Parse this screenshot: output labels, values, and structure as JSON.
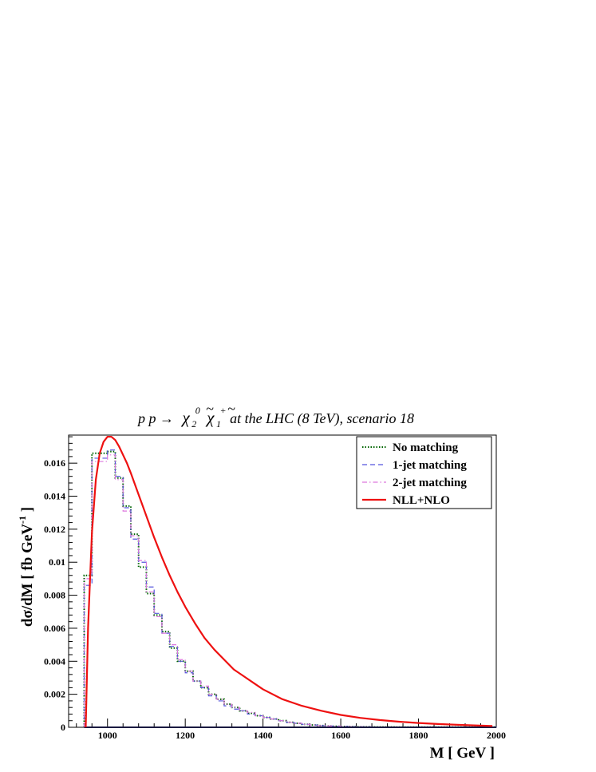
{
  "chart_data": {
    "type": "line",
    "title_parts": {
      "prefix": "p p  →",
      "p1": "χ",
      "p1_tilde": "~",
      "p1_sup": "0",
      "p1_sub": "2",
      "p2": "χ",
      "p2_tilde": "~",
      "p2_sup": "+",
      "p2_sub": "1",
      "suffix": " at the LHC (8 TeV), scenario 18"
    },
    "xlabel": "M  [ GeV ]",
    "ylabel": "dσ/dM  [ fb GeV",
    "ylabel_sup": "-1",
    "ylabel_end": " ]",
    "xlim": [
      900,
      2000
    ],
    "ylim": [
      0,
      0.0177
    ],
    "xticks": [
      "1000",
      "1200",
      "1400",
      "1600",
      "1800",
      "2000"
    ],
    "yticks": [
      "0",
      "0.002",
      "0.004",
      "0.006",
      "0.008",
      "0.01",
      "0.012",
      "0.014",
      "0.016"
    ],
    "bin_edges": [
      940,
      960,
      980,
      1000,
      1020,
      1040,
      1060,
      1080,
      1100,
      1120,
      1140,
      1160,
      1180,
      1200,
      1220,
      1240,
      1260,
      1280,
      1300,
      1320,
      1340,
      1360,
      1380,
      1400,
      1420,
      1440,
      1460,
      1480,
      1500,
      1520,
      1540,
      1560,
      1580,
      1600,
      1620,
      1640,
      1660,
      1680,
      1700,
      1720,
      1740,
      1760,
      1780,
      1800,
      1820,
      1840,
      1860,
      1880,
      1900,
      1920,
      1940,
      1960,
      1980,
      2000
    ],
    "series": [
      {
        "name": "No matching",
        "style": "hist",
        "color": "#006400",
        "dash": "1.5,2",
        "values": [
          0.0092,
          0.0166,
          0.0166,
          0.0167,
          0.0151,
          0.0134,
          0.0117,
          0.0097,
          0.0081,
          0.0068,
          0.0058,
          0.0048,
          0.004,
          0.0034,
          0.0028,
          0.0024,
          0.002,
          0.0017,
          0.0014,
          0.0012,
          0.001,
          0.00085,
          0.0007,
          0.0006,
          0.0005,
          0.0004,
          0.0003,
          0.00024,
          0.00018,
          0.00014,
          0.0001,
          8e-05,
          6e-05,
          5e-05,
          4e-05,
          3e-05,
          3e-05,
          2e-05,
          2e-05,
          2e-05,
          1e-05,
          1e-05,
          1e-05,
          1e-05,
          1e-05,
          1e-05,
          1e-05,
          1e-05,
          1e-05,
          1e-05,
          1e-05,
          1e-05,
          1e-05
        ]
      },
      {
        "name": "1-jet matching",
        "style": "hist",
        "color": "#5555dd",
        "dash": "6,4",
        "values": [
          0.0086,
          0.0163,
          0.0163,
          0.0168,
          0.0152,
          0.0133,
          0.0114,
          0.01,
          0.0085,
          0.0069,
          0.0057,
          0.0049,
          0.004,
          0.0033,
          0.0028,
          0.0024,
          0.0019,
          0.0016,
          0.0013,
          0.0011,
          0.001,
          0.0008,
          0.0007,
          0.0006,
          0.0005,
          0.0004,
          0.0003,
          0.00024,
          0.00018,
          0.00014,
          0.0001,
          8e-05,
          6e-05,
          5e-05,
          4e-05,
          3e-05,
          3e-05,
          2e-05,
          2e-05,
          2e-05,
          1e-05,
          1e-05,
          1e-05,
          1e-05,
          1e-05,
          1e-05,
          1e-05,
          1e-05,
          1e-05,
          1e-05,
          1e-05,
          1e-05,
          1e-05
        ]
      },
      {
        "name": "2-jet matching",
        "style": "hist",
        "color": "#dd77dd",
        "dash": "6,3,1.5,3",
        "values": [
          0.009,
          0.0161,
          0.0161,
          0.0165,
          0.015,
          0.0131,
          0.0116,
          0.0101,
          0.0082,
          0.0067,
          0.0057,
          0.005,
          0.0041,
          0.0034,
          0.0028,
          0.0025,
          0.002,
          0.0017,
          0.0014,
          0.0012,
          0.001,
          0.0009,
          0.0007,
          0.0006,
          0.0005,
          0.0004,
          0.0003,
          0.00024,
          0.00018,
          0.00014,
          0.0001,
          8e-05,
          6e-05,
          5e-05,
          4e-05,
          3e-05,
          3e-05,
          2e-05,
          2e-05,
          2e-05,
          1e-05,
          1e-05,
          1e-05,
          1e-05,
          1e-05,
          1e-05,
          1e-05,
          1e-05,
          1e-05,
          1e-05,
          1e-05,
          1e-05,
          1e-05
        ]
      },
      {
        "name": "NLL+NLO",
        "style": "curve",
        "color": "#ee1111",
        "x": [
          944,
          950,
          960,
          970,
          980,
          990,
          1000,
          1010,
          1020,
          1030,
          1040,
          1050,
          1060,
          1080,
          1100,
          1120,
          1140,
          1160,
          1180,
          1200,
          1225,
          1250,
          1275,
          1300,
          1325,
          1350,
          1375,
          1400,
          1450,
          1500,
          1550,
          1600,
          1650,
          1700,
          1750,
          1800,
          1850,
          1900,
          1950,
          1990
        ],
        "y": [
          0.0,
          0.006,
          0.0118,
          0.015,
          0.0166,
          0.0173,
          0.0176,
          0.0176,
          0.0174,
          0.017,
          0.0165,
          0.016,
          0.0154,
          0.0141,
          0.0128,
          0.0115,
          0.0103,
          0.0092,
          0.0082,
          0.0073,
          0.0063,
          0.0054,
          0.0047,
          0.0041,
          0.0035,
          0.0031,
          0.0027,
          0.0023,
          0.0017,
          0.0013,
          0.001,
          0.00075,
          0.00057,
          0.00044,
          0.00034,
          0.00026,
          0.0002,
          0.00015,
          0.00011,
          8e-05
        ]
      }
    ]
  }
}
